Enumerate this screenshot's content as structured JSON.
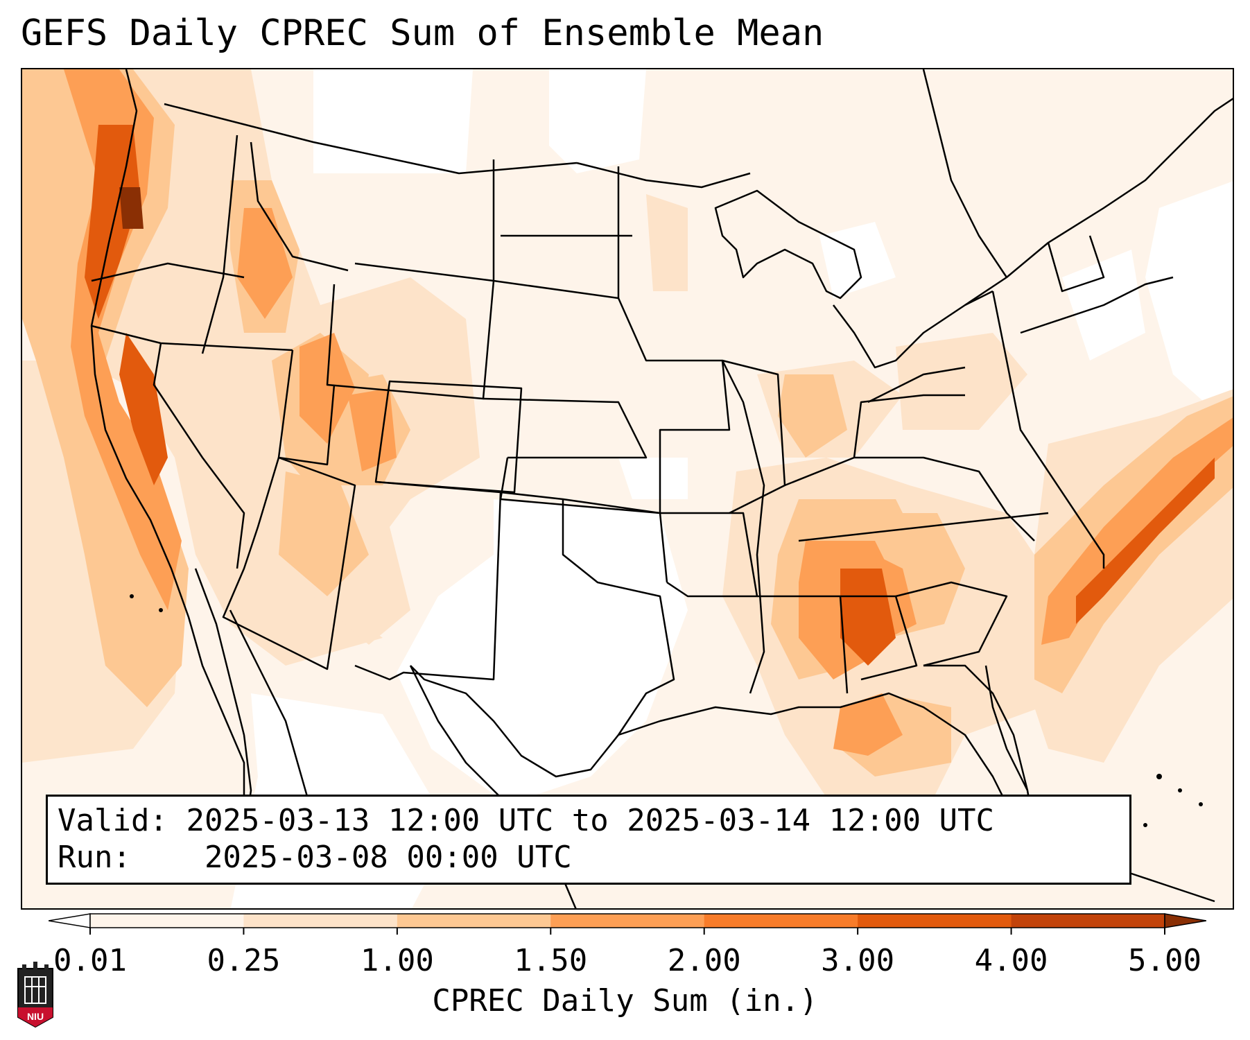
{
  "title": "GEFS Daily CPREC Sum of Ensemble Mean",
  "info": {
    "valid_label": "Valid:",
    "valid_value": "2025-03-13 12:00 UTC to 2025-03-14 12:00 UTC",
    "run_label": "Run:",
    "run_value": "2025-03-08 00:00 UTC"
  },
  "colorbar": {
    "label": "CPREC Daily Sum (in.)",
    "ticks": [
      "0.01",
      "0.25",
      "1.00",
      "1.50",
      "2.00",
      "3.00",
      "4.00",
      "5.00"
    ],
    "colors": [
      "#fef4ea",
      "#fde3c9",
      "#fdc893",
      "#fd9f55",
      "#f87c2a",
      "#e25a0d",
      "#c2430a"
    ],
    "extend": "both",
    "under_color": "#ffffff",
    "over_color": "#8a2f04"
  },
  "logo": {
    "text": "NIU",
    "color": "#c8102e"
  }
}
